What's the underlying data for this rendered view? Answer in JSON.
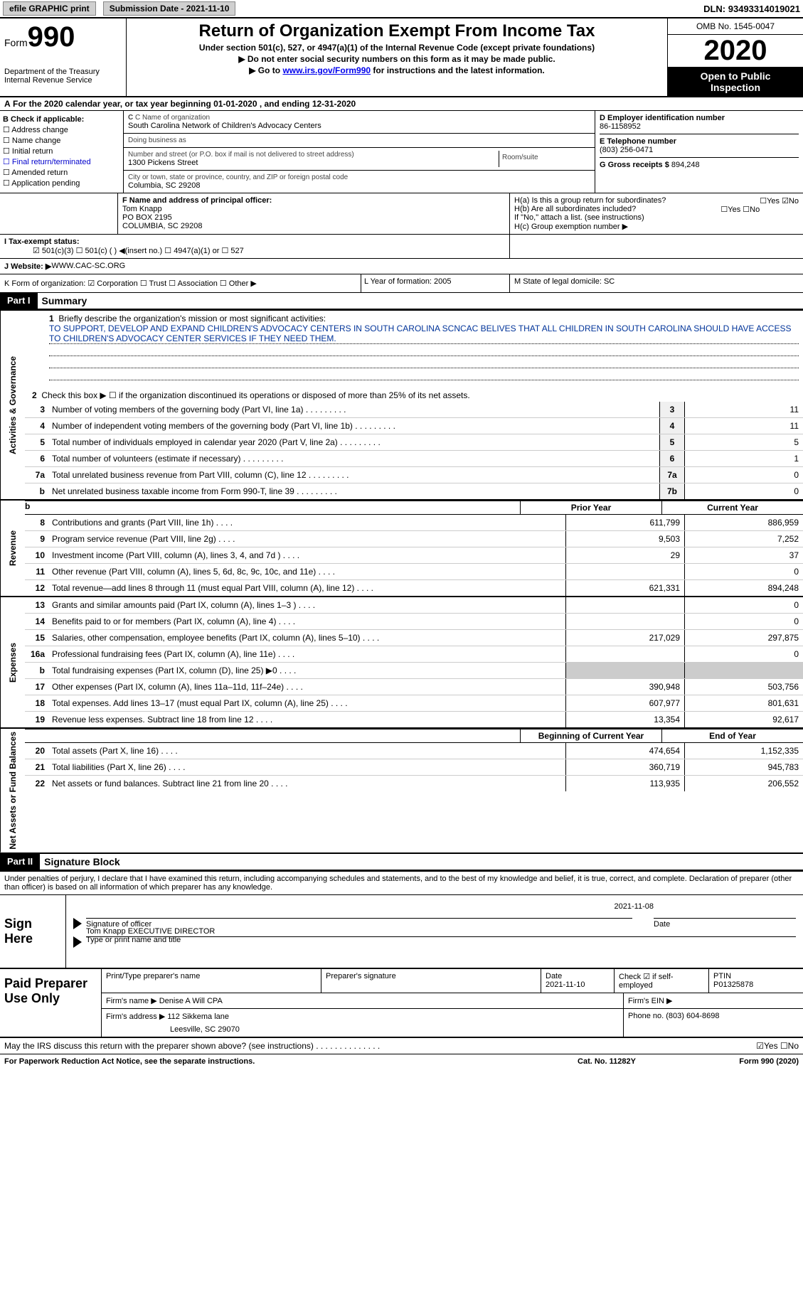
{
  "top_bar": {
    "efile": "efile GRAPHIC print",
    "submission_label": "Submission Date - ",
    "submission_date": "2021-11-10",
    "dln_label": "DLN: ",
    "dln": "93493314019021"
  },
  "header": {
    "form_label": "Form",
    "form_num": "990",
    "dept": "Department of the Treasury",
    "irs": "Internal Revenue Service",
    "title": "Return of Organization Exempt From Income Tax",
    "sub1": "Under section 501(c), 527, or 4947(a)(1) of the Internal Revenue Code (except private foundations)",
    "sub2": "▶ Do not enter social security numbers on this form as it may be made public.",
    "sub3_prefix": "▶ Go to ",
    "sub3_link": "www.irs.gov/Form990",
    "sub3_suffix": " for instructions and the latest information.",
    "omb": "OMB No. 1545-0047",
    "year": "2020",
    "inspect_line1": "Open to Public",
    "inspect_line2": "Inspection"
  },
  "period": {
    "prefix_a": "A",
    "text": " For the 2020 calendar year, or tax year beginning 01-01-2020    , and ending 12-31-2020"
  },
  "section_b": {
    "label": "B Check if applicable:",
    "addr_change": "☐ Address change",
    "name_change": "☐ Name change",
    "initial": "☐ Initial return",
    "final": "☐ Final return/terminated",
    "amended": "☐ Amended return",
    "app_pending": "☐ Application pending"
  },
  "section_c": {
    "name_label": "C Name of organization",
    "name": "South Carolina Network of Children's Advocacy Centers",
    "dba_label": "Doing business as",
    "dba": "",
    "addr_label": "Number and street (or P.O. box if mail is not delivered to street address)",
    "addr": "1300 Pickens Street",
    "room_label": "Room/suite",
    "city_label": "City or town, state or province, country, and ZIP or foreign postal code",
    "city": "Columbia, SC  29208"
  },
  "section_d": {
    "ein_label": "D Employer identification number",
    "ein": "86-1158952",
    "phone_label": "E Telephone number",
    "phone": "(803) 256-0471",
    "gross_label": "G Gross receipts $ ",
    "gross": "894,248"
  },
  "section_f": {
    "label": "F Name and address of principal officer:",
    "name": "Tom Knapp",
    "addr1": "PO BOX 2195",
    "addr2": "COLUMBIA, SC  29208"
  },
  "section_h": {
    "ha": "H(a)  Is this a group return for subordinates?",
    "ha_ans": "☐Yes ☑No",
    "hb": "H(b)  Are all subordinates included?",
    "hb_ans": "☐Yes ☐No",
    "hb_note": "If \"No,\" attach a list. (see instructions)",
    "hc": "H(c)  Group exemption number ▶"
  },
  "status": {
    "label": "I   Tax-exempt status:",
    "opts": "☑ 501(c)(3)    ☐  501(c) (  ) ◀(insert no.)    ☐  4947(a)(1) or   ☐  527"
  },
  "website": {
    "label": "J   Website: ▶  ",
    "value": "WWW.CAC-SC.ORG"
  },
  "k_row": {
    "label": "K Form of organization:  ☑ Corporation  ☐ Trust  ☐ Association  ☐ Other ▶",
    "l": "L Year of formation: 2005",
    "m": "M State of legal domicile: SC"
  },
  "part1": {
    "hdr": "Part I",
    "title": "Summary",
    "q1": "Briefly describe the organization's mission or most significant activities:",
    "mission": "TO SUPPORT, DEVELOP AND EXPAND CHILDREN'S ADVOCACY CENTERS IN SOUTH CAROLINA SCNCAC BELIVES THAT ALL CHILDREN IN SOUTH CAROLINA SHOULD HAVE ACCESS TO CHILDREN'S ADVOCACY CENTER SERVICES IF THEY NEED THEM.",
    "q2": "Check this box ▶ ☐  if the organization discontinued its operations or disposed of more than 25% of its net assets.",
    "lines_gov": [
      {
        "n": "3",
        "d": "Number of voting members of the governing body (Part VI, line 1a)",
        "c": "3",
        "v": "11"
      },
      {
        "n": "4",
        "d": "Number of independent voting members of the governing body (Part VI, line 1b)",
        "c": "4",
        "v": "11"
      },
      {
        "n": "5",
        "d": "Total number of individuals employed in calendar year 2020 (Part V, line 2a)",
        "c": "5",
        "v": "5"
      },
      {
        "n": "6",
        "d": "Total number of volunteers (estimate if necessary)",
        "c": "6",
        "v": "1"
      },
      {
        "n": "7a",
        "d": "Total unrelated business revenue from Part VIII, column (C), line 12",
        "c": "7a",
        "v": "0"
      },
      {
        "n": "b",
        "d": "Net unrelated business taxable income from Form 990-T, line 39",
        "c": "7b",
        "v": "0"
      }
    ],
    "col_prior": "Prior Year",
    "col_current": "Current Year",
    "side_gov": "Activities & Governance",
    "side_rev": "Revenue",
    "side_exp": "Expenses",
    "side_net": "Net Assets or Fund Balances",
    "rev": [
      {
        "n": "8",
        "d": "Contributions and grants (Part VIII, line 1h)",
        "p": "611,799",
        "c": "886,959"
      },
      {
        "n": "9",
        "d": "Program service revenue (Part VIII, line 2g)",
        "p": "9,503",
        "c": "7,252"
      },
      {
        "n": "10",
        "d": "Investment income (Part VIII, column (A), lines 3, 4, and 7d )",
        "p": "29",
        "c": "37"
      },
      {
        "n": "11",
        "d": "Other revenue (Part VIII, column (A), lines 5, 6d, 8c, 9c, 10c, and 11e)",
        "p": "",
        "c": "0"
      },
      {
        "n": "12",
        "d": "Total revenue—add lines 8 through 11 (must equal Part VIII, column (A), line 12)",
        "p": "621,331",
        "c": "894,248"
      }
    ],
    "exp": [
      {
        "n": "13",
        "d": "Grants and similar amounts paid (Part IX, column (A), lines 1–3 )",
        "p": "",
        "c": "0"
      },
      {
        "n": "14",
        "d": "Benefits paid to or for members (Part IX, column (A), line 4)",
        "p": "",
        "c": "0"
      },
      {
        "n": "15",
        "d": "Salaries, other compensation, employee benefits (Part IX, column (A), lines 5–10)",
        "p": "217,029",
        "c": "297,875"
      },
      {
        "n": "16a",
        "d": "Professional fundraising fees (Part IX, column (A), line 11e)",
        "p": "",
        "c": "0"
      },
      {
        "n": "b",
        "d": "Total fundraising expenses (Part IX, column (D), line 25) ▶0",
        "p": "GREY",
        "c": "GREY"
      },
      {
        "n": "17",
        "d": "Other expenses (Part IX, column (A), lines 11a–11d, 11f–24e)",
        "p": "390,948",
        "c": "503,756"
      },
      {
        "n": "18",
        "d": "Total expenses. Add lines 13–17 (must equal Part IX, column (A), line 25)",
        "p": "607,977",
        "c": "801,631"
      },
      {
        "n": "19",
        "d": "Revenue less expenses. Subtract line 18 from line 12",
        "p": "13,354",
        "c": "92,617"
      }
    ],
    "col_beg": "Beginning of Current Year",
    "col_end": "End of Year",
    "net": [
      {
        "n": "20",
        "d": "Total assets (Part X, line 16)",
        "p": "474,654",
        "c": "1,152,335"
      },
      {
        "n": "21",
        "d": "Total liabilities (Part X, line 26)",
        "p": "360,719",
        "c": "945,783"
      },
      {
        "n": "22",
        "d": "Net assets or fund balances. Subtract line 21 from line 20",
        "p": "113,935",
        "c": "206,552"
      }
    ]
  },
  "part2": {
    "hdr": "Part II",
    "title": "Signature Block",
    "intro": "Under penalties of perjury, I declare that I have examined this return, including accompanying schedules and statements, and to the best of my knowledge and belief, it is true, correct, and complete. Declaration of preparer (other than officer) is based on all information of which preparer has any knowledge.",
    "sign_here": "Sign Here",
    "sig_officer_label": "Signature of officer",
    "sig_date_label": "Date",
    "sig_date": "2021-11-08",
    "sig_name": "Tom Knapp EXECUTIVE DIRECTOR",
    "sig_name_label": "Type or print name and title",
    "prep_label": "Paid Preparer Use Only",
    "prep_name_label": "Print/Type preparer's name",
    "prep_sig_label": "Preparer's signature",
    "prep_date_label": "Date",
    "prep_date": "2021-11-10",
    "prep_check_label": "Check ☑ if self-employed",
    "ptin_label": "PTIN",
    "ptin": "P01325878",
    "firm_name_label": "Firm's name   ▶ ",
    "firm_name": "Denise A Will CPA",
    "firm_ein_label": "Firm's EIN ▶",
    "firm_addr_label": "Firm's address ▶ ",
    "firm_addr1": "112 Sikkema lane",
    "firm_addr2": "Leesville, SC  29070",
    "firm_phone_label": "Phone no. ",
    "firm_phone": "(803) 604-8698",
    "discuss": "May the IRS discuss this return with the preparer shown above? (see instructions)",
    "discuss_ans": "☑Yes  ☐No"
  },
  "footer": {
    "pra": "For Paperwork Reduction Act Notice, see the separate instructions.",
    "cat": "Cat. No. 11282Y",
    "form": "Form 990 (2020)"
  }
}
